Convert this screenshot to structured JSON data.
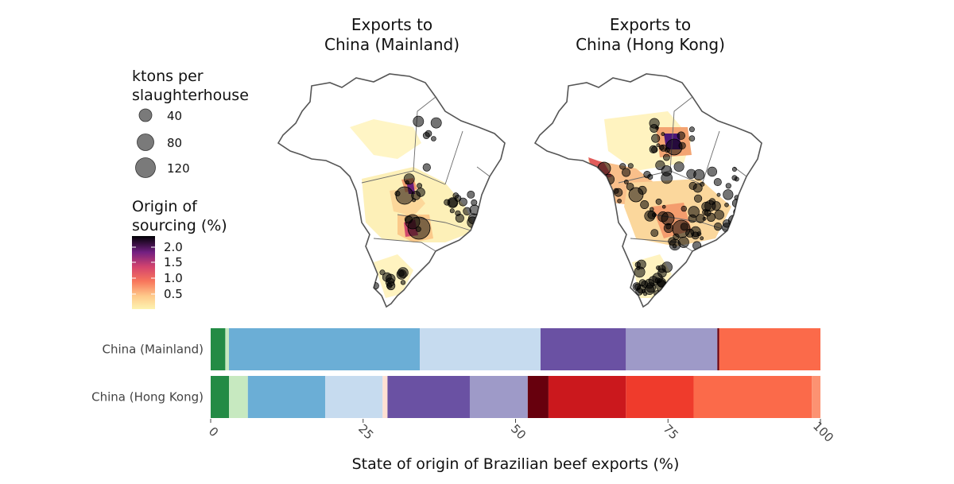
{
  "maps": {
    "left_title_line1": "Exports to",
    "left_title_line2": "China (Mainland)",
    "right_title_line1": "Exports to",
    "right_title_line2": "China (Hong Kong)"
  },
  "legend": {
    "size": {
      "title_line1": "ktons per",
      "title_line2": "slaughterhouse",
      "entries": [
        "40",
        "80",
        "120"
      ]
    },
    "color": {
      "title_line1": "Origin of",
      "title_line2": "sourcing (%)",
      "ticks": [
        "2.0",
        "1.5",
        "1.0",
        "0.5"
      ],
      "gradient": [
        "#000004",
        "#3b0f70",
        "#8c2981",
        "#de4968",
        "#fe9f6d",
        "#fcfdbf"
      ]
    }
  },
  "chart_data": {
    "type": "bar",
    "orientation": "horizontal",
    "stacked": true,
    "categories": [
      "China (Mainland)",
      "China (Hong Kong)"
    ],
    "xlabel": "State of origin of Brazilian beef exports (%)",
    "xlim": [
      0,
      100
    ],
    "xticks": [
      "0",
      "25",
      "50",
      "75",
      "100"
    ],
    "segments": {
      "China (Mainland)": [
        {
          "value": 2.4,
          "color": "#238b45"
        },
        {
          "value": 0.6,
          "color": "#c7e9c0"
        },
        {
          "value": 31.3,
          "color": "#6baed6"
        },
        {
          "value": 19.8,
          "color": "#c6dbef"
        },
        {
          "value": 14.0,
          "color": "#6a51a3"
        },
        {
          "value": 15.0,
          "color": "#9e9ac8"
        },
        {
          "value": 0.3,
          "color": "#67000d"
        },
        {
          "value": 16.6,
          "color": "#fb6a4a"
        }
      ],
      "China (Hong Kong)": [
        {
          "value": 3.0,
          "color": "#238b45"
        },
        {
          "value": 3.1,
          "color": "#c7e9c0"
        },
        {
          "value": 12.7,
          "color": "#6baed6"
        },
        {
          "value": 9.4,
          "color": "#c6dbef"
        },
        {
          "value": 0.8,
          "color": "#fee0d2"
        },
        {
          "value": 13.5,
          "color": "#6a51a3"
        },
        {
          "value": 9.5,
          "color": "#9e9ac8"
        },
        {
          "value": 3.4,
          "color": "#67000d"
        },
        {
          "value": 12.7,
          "color": "#cb181d"
        },
        {
          "value": 11.1,
          "color": "#ef3b2c"
        },
        {
          "value": 19.4,
          "color": "#fb6a4a"
        },
        {
          "value": 1.4,
          "color": "#fc9272"
        }
      ]
    }
  }
}
